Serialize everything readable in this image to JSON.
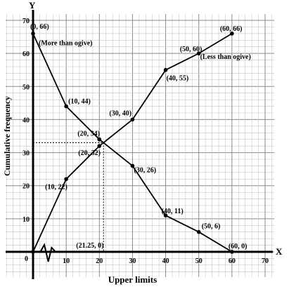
{
  "chart_data": {
    "type": "line",
    "xlabel": "Upper limits",
    "ylabel": "Cumulative frequency",
    "x_axis_letter": "X",
    "y_axis_letter": "Y",
    "origin_label": "0",
    "xlim": [
      0,
      70
    ],
    "ylim": [
      0,
      70
    ],
    "x_ticks": [
      10,
      20,
      30,
      40,
      50,
      60,
      70
    ],
    "y_ticks": [
      10,
      20,
      30,
      40,
      50,
      60,
      70
    ],
    "grid": true,
    "series": [
      {
        "name": "Less than ogive",
        "x": [
          0,
          10,
          20,
          30,
          40,
          50,
          60
        ],
        "y": [
          0,
          22,
          32,
          40,
          55,
          60,
          66
        ],
        "point_labels": [
          "",
          "(10, 22)",
          "(20, 32)",
          "(30, 40)",
          "(40, 55)",
          "(50, 60)",
          "(60, 66)"
        ]
      },
      {
        "name": "More than ogive",
        "x": [
          0,
          10,
          20,
          30,
          40,
          50,
          60
        ],
        "y": [
          66,
          44,
          34,
          26,
          11,
          6,
          0
        ],
        "point_labels": [
          "(0, 66)",
          "(10, 44)",
          "(20, 34)",
          "(30, 26)",
          "(40, 11)",
          "(50, 6)",
          "(60, 0)"
        ]
      }
    ],
    "intersection": {
      "x": 21.25,
      "y": 33,
      "foot_label": "(21.25, 0)"
    },
    "annotations": {
      "less_than": "(Less than ogive)",
      "more_than": "(More than ogive)"
    }
  }
}
